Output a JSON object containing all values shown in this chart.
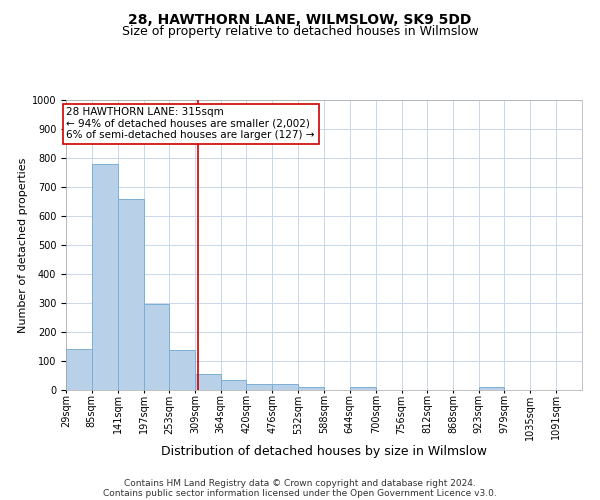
{
  "title": "28, HAWTHORN LANE, WILMSLOW, SK9 5DD",
  "subtitle": "Size of property relative to detached houses in Wilmslow",
  "xlabel": "Distribution of detached houses by size in Wilmslow",
  "ylabel": "Number of detached properties",
  "bar_edges": [
    29,
    85,
    141,
    197,
    253,
    309,
    364,
    420,
    476,
    532,
    588,
    644,
    700,
    756,
    812,
    868,
    923,
    979,
    1035,
    1091,
    1147
  ],
  "bar_heights": [
    143,
    778,
    660,
    297,
    139,
    55,
    35,
    21,
    21,
    10,
    0,
    10,
    0,
    0,
    0,
    0,
    10,
    0,
    0,
    0,
    0
  ],
  "bar_color": "#b8d0e8",
  "bar_edge_color": "#7aafd4",
  "property_line_x": 315,
  "property_line_color": "#cc0000",
  "annotation_text": "28 HAWTHORN LANE: 315sqm\n← 94% of detached houses are smaller (2,002)\n6% of semi-detached houses are larger (127) →",
  "annotation_box_color": "#ffffff",
  "annotation_box_edge_color": "#cc0000",
  "ylim": [
    0,
    1000
  ],
  "yticks": [
    0,
    100,
    200,
    300,
    400,
    500,
    600,
    700,
    800,
    900,
    1000
  ],
  "footer_line1": "Contains HM Land Registry data © Crown copyright and database right 2024.",
  "footer_line2": "Contains public sector information licensed under the Open Government Licence v3.0.",
  "background_color": "#ffffff",
  "grid_color": "#c8d8ea",
  "title_fontsize": 10,
  "subtitle_fontsize": 9,
  "xlabel_fontsize": 9,
  "ylabel_fontsize": 8,
  "tick_fontsize": 7,
  "annotation_fontsize": 7.5,
  "footer_fontsize": 6.5
}
